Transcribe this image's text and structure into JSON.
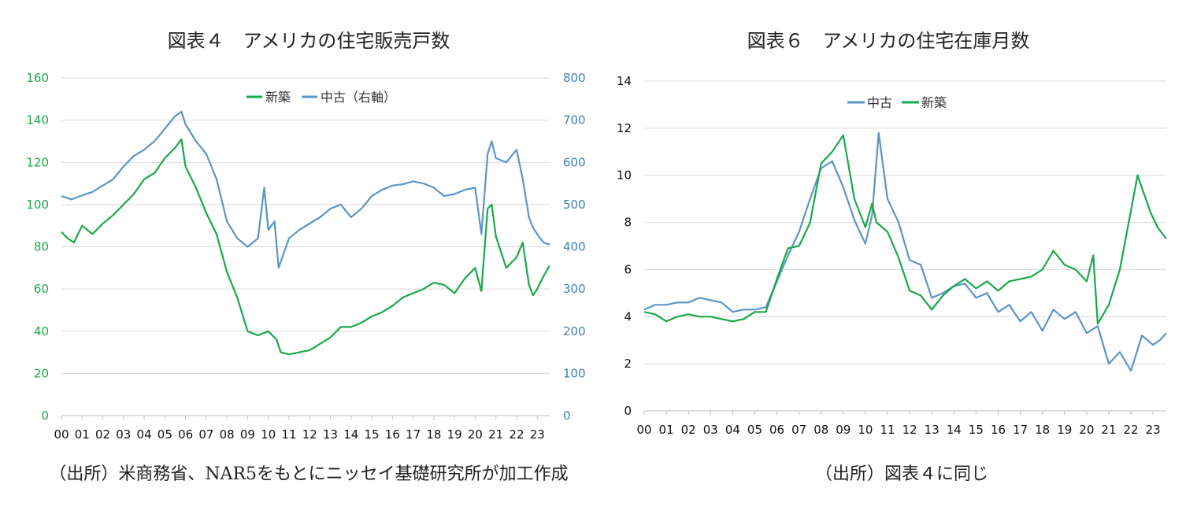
{
  "chart_data": [
    {
      "type": "line",
      "title": "図表４　アメリカの住宅販売戸数",
      "source": "（出所）米商務省、NAR5をもとにニッセイ基礎研究所が加工作成",
      "x_tick_labels": [
        "00",
        "01",
        "02",
        "03",
        "04",
        "05",
        "06",
        "07",
        "08",
        "09",
        "10",
        "11",
        "12",
        "13",
        "14",
        "15",
        "16",
        "17",
        "18",
        "19",
        "20",
        "21",
        "22",
        "23"
      ],
      "x_range": [
        2000.0,
        2023.6
      ],
      "y_left": {
        "range": [
          0,
          160
        ],
        "ticks": [
          0,
          20,
          40,
          60,
          80,
          100,
          120,
          140,
          160
        ]
      },
      "y_right": {
        "range": [
          0,
          800
        ],
        "ticks": [
          0,
          100,
          200,
          300,
          400,
          500,
          600,
          700,
          800
        ]
      },
      "grid": true,
      "legend": {
        "placement": "top-center",
        "entries": [
          "新築",
          "中古（右軸）"
        ]
      },
      "series": [
        {
          "name": "新築",
          "axis": "left",
          "color": "#1aa84a",
          "points": [
            [
              2000.0,
              87
            ],
            [
              2000.3,
              84
            ],
            [
              2000.6,
              82
            ],
            [
              2001.0,
              90
            ],
            [
              2001.5,
              86
            ],
            [
              2002.0,
              91
            ],
            [
              2002.5,
              95
            ],
            [
              2003.0,
              100
            ],
            [
              2003.5,
              105
            ],
            [
              2004.0,
              112
            ],
            [
              2004.5,
              115
            ],
            [
              2005.0,
              122
            ],
            [
              2005.5,
              127
            ],
            [
              2005.8,
              131
            ],
            [
              2006.0,
              118
            ],
            [
              2006.5,
              108
            ],
            [
              2007.0,
              96
            ],
            [
              2007.5,
              86
            ],
            [
              2008.0,
              68
            ],
            [
              2008.5,
              56
            ],
            [
              2009.0,
              40
            ],
            [
              2009.5,
              38
            ],
            [
              2010.0,
              40
            ],
            [
              2010.4,
              36
            ],
            [
              2010.6,
              30
            ],
            [
              2011.0,
              29
            ],
            [
              2011.5,
              30
            ],
            [
              2012.0,
              31
            ],
            [
              2012.5,
              34
            ],
            [
              2013.0,
              37
            ],
            [
              2013.5,
              42
            ],
            [
              2014.0,
              42
            ],
            [
              2014.5,
              44
            ],
            [
              2015.0,
              47
            ],
            [
              2015.5,
              49
            ],
            [
              2016.0,
              52
            ],
            [
              2016.5,
              56
            ],
            [
              2017.0,
              58
            ],
            [
              2017.5,
              60
            ],
            [
              2018.0,
              63
            ],
            [
              2018.5,
              62
            ],
            [
              2019.0,
              58
            ],
            [
              2019.5,
              65
            ],
            [
              2020.0,
              70
            ],
            [
              2020.3,
              59
            ],
            [
              2020.6,
              98
            ],
            [
              2020.8,
              100
            ],
            [
              2021.0,
              85
            ],
            [
              2021.5,
              70
            ],
            [
              2022.0,
              75
            ],
            [
              2022.3,
              82
            ],
            [
              2022.6,
              62
            ],
            [
              2022.8,
              57
            ],
            [
              2023.0,
              60
            ],
            [
              2023.3,
              66
            ],
            [
              2023.6,
              71
            ]
          ]
        },
        {
          "name": "中古（右軸）",
          "axis": "right",
          "color": "#5b95c6",
          "points": [
            [
              2000.0,
              520
            ],
            [
              2000.5,
              512
            ],
            [
              2001.0,
              522
            ],
            [
              2001.5,
              530
            ],
            [
              2002.0,
              545
            ],
            [
              2002.5,
              560
            ],
            [
              2003.0,
              590
            ],
            [
              2003.5,
              615
            ],
            [
              2004.0,
              630
            ],
            [
              2004.5,
              650
            ],
            [
              2005.0,
              680
            ],
            [
              2005.5,
              710
            ],
            [
              2005.8,
              720
            ],
            [
              2006.0,
              690
            ],
            [
              2006.5,
              650
            ],
            [
              2007.0,
              620
            ],
            [
              2007.5,
              560
            ],
            [
              2008.0,
              460
            ],
            [
              2008.5,
              420
            ],
            [
              2009.0,
              400
            ],
            [
              2009.5,
              420
            ],
            [
              2009.8,
              540
            ],
            [
              2010.0,
              440
            ],
            [
              2010.3,
              460
            ],
            [
              2010.5,
              350
            ],
            [
              2011.0,
              420
            ],
            [
              2011.5,
              440
            ],
            [
              2012.0,
              455
            ],
            [
              2012.5,
              470
            ],
            [
              2013.0,
              490
            ],
            [
              2013.5,
              500
            ],
            [
              2014.0,
              470
            ],
            [
              2014.5,
              490
            ],
            [
              2015.0,
              520
            ],
            [
              2015.5,
              535
            ],
            [
              2016.0,
              545
            ],
            [
              2016.5,
              548
            ],
            [
              2017.0,
              555
            ],
            [
              2017.5,
              550
            ],
            [
              2018.0,
              540
            ],
            [
              2018.5,
              520
            ],
            [
              2019.0,
              525
            ],
            [
              2019.5,
              535
            ],
            [
              2020.0,
              540
            ],
            [
              2020.3,
              430
            ],
            [
              2020.6,
              620
            ],
            [
              2020.8,
              650
            ],
            [
              2021.0,
              610
            ],
            [
              2021.5,
              600
            ],
            [
              2022.0,
              630
            ],
            [
              2022.3,
              560
            ],
            [
              2022.6,
              470
            ],
            [
              2022.8,
              445
            ],
            [
              2023.0,
              430
            ],
            [
              2023.3,
              410
            ],
            [
              2023.6,
              405
            ]
          ]
        }
      ]
    },
    {
      "type": "line",
      "title": "図表６　アメリカの住宅在庫月数",
      "source": "（出所）図表４に同じ",
      "x_tick_labels": [
        "00",
        "01",
        "02",
        "03",
        "04",
        "05",
        "06",
        "07",
        "08",
        "09",
        "10",
        "11",
        "12",
        "13",
        "14",
        "15",
        "16",
        "17",
        "18",
        "19",
        "20",
        "21",
        "22",
        "23"
      ],
      "x_range": [
        2000.0,
        2023.6
      ],
      "y": {
        "range": [
          0,
          14
        ],
        "ticks": [
          0,
          2,
          4,
          6,
          8,
          10,
          12,
          14
        ]
      },
      "grid": true,
      "legend": {
        "placement": "top-left",
        "entries": [
          "中古",
          "新築"
        ]
      },
      "series": [
        {
          "name": "中古",
          "color": "#5b95c6",
          "points": [
            [
              2000.0,
              4.3
            ],
            [
              2000.5,
              4.5
            ],
            [
              2001.0,
              4.5
            ],
            [
              2001.5,
              4.6
            ],
            [
              2002.0,
              4.6
            ],
            [
              2002.5,
              4.8
            ],
            [
              2003.0,
              4.7
            ],
            [
              2003.5,
              4.6
            ],
            [
              2004.0,
              4.2
            ],
            [
              2004.5,
              4.3
            ],
            [
              2005.0,
              4.3
            ],
            [
              2005.5,
              4.4
            ],
            [
              2006.0,
              5.5
            ],
            [
              2006.5,
              6.6
            ],
            [
              2007.0,
              7.6
            ],
            [
              2007.5,
              9.0
            ],
            [
              2008.0,
              10.3
            ],
            [
              2008.5,
              10.6
            ],
            [
              2009.0,
              9.5
            ],
            [
              2009.5,
              8.1
            ],
            [
              2010.0,
              7.1
            ],
            [
              2010.3,
              8.3
            ],
            [
              2010.6,
              11.8
            ],
            [
              2011.0,
              9.0
            ],
            [
              2011.5,
              8.0
            ],
            [
              2012.0,
              6.4
            ],
            [
              2012.5,
              6.2
            ],
            [
              2013.0,
              4.8
            ],
            [
              2013.5,
              5.0
            ],
            [
              2014.0,
              5.3
            ],
            [
              2014.5,
              5.4
            ],
            [
              2015.0,
              4.8
            ],
            [
              2015.5,
              5.0
            ],
            [
              2016.0,
              4.2
            ],
            [
              2016.5,
              4.5
            ],
            [
              2017.0,
              3.8
            ],
            [
              2017.5,
              4.2
            ],
            [
              2018.0,
              3.4
            ],
            [
              2018.5,
              4.3
            ],
            [
              2019.0,
              3.9
            ],
            [
              2019.5,
              4.2
            ],
            [
              2020.0,
              3.3
            ],
            [
              2020.5,
              3.6
            ],
            [
              2021.0,
              2.0
            ],
            [
              2021.5,
              2.5
            ],
            [
              2022.0,
              1.7
            ],
            [
              2022.5,
              3.2
            ],
            [
              2023.0,
              2.8
            ],
            [
              2023.3,
              3.0
            ],
            [
              2023.6,
              3.3
            ]
          ]
        },
        {
          "name": "新築",
          "color": "#1aa84a",
          "points": [
            [
              2000.0,
              4.2
            ],
            [
              2000.5,
              4.1
            ],
            [
              2001.0,
              3.8
            ],
            [
              2001.5,
              4.0
            ],
            [
              2002.0,
              4.1
            ],
            [
              2002.5,
              4.0
            ],
            [
              2003.0,
              4.0
            ],
            [
              2003.5,
              3.9
            ],
            [
              2004.0,
              3.8
            ],
            [
              2004.5,
              3.9
            ],
            [
              2005.0,
              4.2
            ],
            [
              2005.5,
              4.2
            ],
            [
              2006.0,
              5.6
            ],
            [
              2006.5,
              6.9
            ],
            [
              2007.0,
              7.0
            ],
            [
              2007.5,
              8.0
            ],
            [
              2008.0,
              10.5
            ],
            [
              2008.5,
              11.0
            ],
            [
              2009.0,
              11.7
            ],
            [
              2009.5,
              9.0
            ],
            [
              2010.0,
              7.8
            ],
            [
              2010.3,
              8.8
            ],
            [
              2010.5,
              8.0
            ],
            [
              2011.0,
              7.6
            ],
            [
              2011.5,
              6.5
            ],
            [
              2012.0,
              5.1
            ],
            [
              2012.5,
              4.9
            ],
            [
              2013.0,
              4.3
            ],
            [
              2013.5,
              4.9
            ],
            [
              2014.0,
              5.3
            ],
            [
              2014.5,
              5.6
            ],
            [
              2015.0,
              5.2
            ],
            [
              2015.5,
              5.5
            ],
            [
              2016.0,
              5.1
            ],
            [
              2016.5,
              5.5
            ],
            [
              2017.0,
              5.6
            ],
            [
              2017.5,
              5.7
            ],
            [
              2018.0,
              6.0
            ],
            [
              2018.5,
              6.8
            ],
            [
              2019.0,
              6.2
            ],
            [
              2019.5,
              6.0
            ],
            [
              2020.0,
              5.5
            ],
            [
              2020.3,
              6.6
            ],
            [
              2020.5,
              3.7
            ],
            [
              2021.0,
              4.5
            ],
            [
              2021.5,
              6.0
            ],
            [
              2022.0,
              8.5
            ],
            [
              2022.3,
              10.0
            ],
            [
              2022.6,
              9.2
            ],
            [
              2022.9,
              8.4
            ],
            [
              2023.2,
              7.8
            ],
            [
              2023.6,
              7.3
            ]
          ]
        }
      ]
    }
  ]
}
